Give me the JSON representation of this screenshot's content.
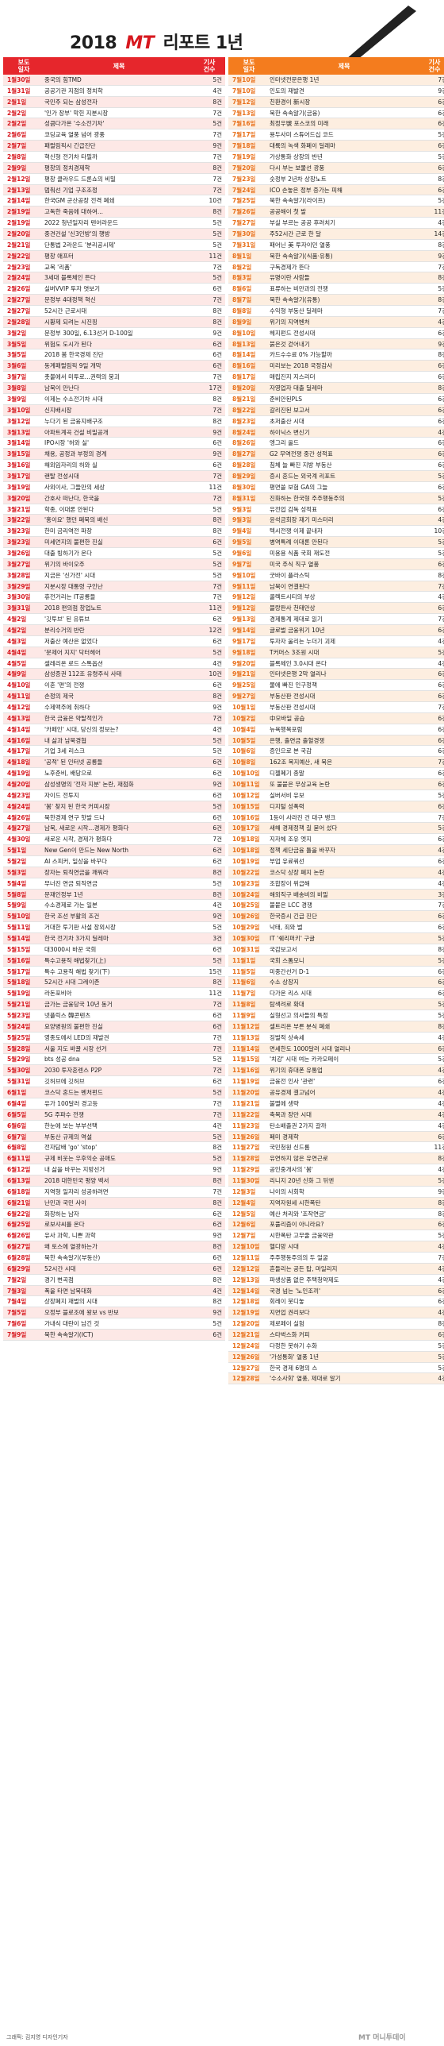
{
  "title": {
    "year": "2018",
    "brand": "MT",
    "suffix": "리포트 1년"
  },
  "headers": {
    "date": "보도\n일자",
    "subject": "제목",
    "count": "기사\n건수"
  },
  "left_rows": [
    [
      "1월30일",
      "중국의 힘TMD",
      "5건"
    ],
    [
      "1월31일",
      "공공기관 지점의 정치학",
      "4건"
    ],
    [
      "2월1일",
      "국민주 되는 삼성전자",
      "8건"
    ],
    [
      "2월2일",
      "'인가 장부' 막힌 지분시장",
      "7건"
    ],
    [
      "2월2일",
      "성큼다가온 '수소전기차'",
      "5건"
    ],
    [
      "2월6일",
      "코딩교육 열풍 넘어 광풍",
      "7건"
    ],
    [
      "2월7일",
      "패럴림픽시 긴급진단",
      "9건"
    ],
    [
      "2월8일",
      "혁신형 전기차 타필까",
      "7건"
    ],
    [
      "2월9일",
      "평창의 정치경제학",
      "8건"
    ],
    [
      "2월12일",
      "평창 클라우드 드론쇼의 비밀",
      "7건"
    ],
    [
      "2월13일",
      "멈춰선 기업 구조조정",
      "7건"
    ],
    [
      "2월14일",
      "한국GM 군산공장 전격 폐쇄",
      "10건"
    ],
    [
      "2월19일",
      "고독한 죽음에 대하여...",
      "8건"
    ],
    [
      "2월19일",
      "2022 청년일자리 텐어라운드",
      "5건"
    ],
    [
      "2월20일",
      "중견건설 '신3인방'의 행방",
      "5건"
    ],
    [
      "2월21일",
      "단통법 2라운드 '분리공시제'",
      "5건"
    ],
    [
      "2월22일",
      "평창 애프터",
      "11건"
    ],
    [
      "2월23일",
      "교복 '리폼'",
      "7건"
    ],
    [
      "2월24일",
      "3세대 블록체인 뜬다",
      "5건"
    ],
    [
      "2월26일",
      "실버VVIP 투자 엿보기",
      "6건"
    ],
    [
      "2월27일",
      "문정부 4대정책 혁신",
      "7건"
    ],
    [
      "2월27일",
      "52시간 근로시대",
      "8건"
    ],
    [
      "2월28일",
      "시황제 되려는 시진핑",
      "8건"
    ],
    [
      "3월2일",
      "문정부 300일, 6.13선거 D-100일",
      "9건"
    ],
    [
      "3월5일",
      "위험도 도시가 된다",
      "6건"
    ],
    [
      "3월5일",
      "2018 봄 한국경제 진단",
      "6건"
    ],
    [
      "3월6일",
      "동계패럴림픽 9일 개막",
      "6건"
    ],
    [
      "3월7일",
      "촛불에서 미투로...권력의 붕괴",
      "7건"
    ],
    [
      "3월8일",
      "남북이 만난다",
      "17건"
    ],
    [
      "3월9일",
      "이제는 수소전기차 시대",
      "8건"
    ],
    [
      "3월10일",
      "신지배시장",
      "7건"
    ],
    [
      "3월12일",
      "누다기 된 금융지배구조",
      "8건"
    ],
    [
      "3월13일",
      "아파트계곡 건설 비밀공개",
      "9건"
    ],
    [
      "3월14일",
      "IPO시장 '허와 실'",
      "6건"
    ],
    [
      "3월15일",
      "채용, 공정과 부정의 경계",
      "9건"
    ],
    [
      "3월16일",
      "해외임자리의 허와 실",
      "6건"
    ],
    [
      "3월17일",
      "랜탈 전성시대",
      "7건"
    ],
    [
      "3월19일",
      "사외이사, 그들만의 세상",
      "11건"
    ],
    [
      "3월20일",
      "간호사 떠난다, 한국을",
      "7건"
    ],
    [
      "3월21일",
      "학종, 이대론 안된다",
      "5건"
    ],
    [
      "3월22일",
      "'홍이요' 했던 폐북의 배신",
      "8건"
    ],
    [
      "3월23일",
      "한미 금리역전 파장",
      "8건"
    ],
    [
      "3월23일",
      "미세먼지의 불편한 진실",
      "6건"
    ],
    [
      "3월26일",
      "대출 빙하기가 온다",
      "5건"
    ],
    [
      "3월27일",
      "위기의 바이오주",
      "5건"
    ],
    [
      "3월28일",
      "지금은 '신가전' 시대",
      "5건"
    ],
    [
      "3월29일",
      "지분시장 대통령 구인난",
      "7건"
    ],
    [
      "3월30일",
      "휴전거리는 IT공룡들",
      "7건"
    ],
    [
      "3월31일",
      "2018 편의점 창업노트",
      "11건"
    ],
    [
      "4월2일",
      "'깃투브' 된 유튜브",
      "6건"
    ],
    [
      "4월2일",
      "분리수거의 반란",
      "12건"
    ],
    [
      "4월3일",
      "저출산 예산은 없었다",
      "6건"
    ],
    [
      "4월4일",
      "'문제어 지지' 닥터헤어",
      "5건"
    ],
    [
      "4월5일",
      "셀레리온 로드 스톡옵션",
      "4건"
    ],
    [
      "4월9일",
      "삼성증권 112조 유령주식 사태",
      "10건"
    ],
    [
      "4월10일",
      "이혼 '편'의 전쟁",
      "6건"
    ],
    [
      "4월11일",
      "손정의 제국",
      "8건"
    ],
    [
      "4월12일",
      "수제맥주에 취하다",
      "9건"
    ],
    [
      "4월13일",
      "한국 금융은 약탈적인가",
      "7건"
    ],
    [
      "4월14일",
      "'카페인' 시대, 당신의 정보는?",
      "4건"
    ],
    [
      "4월16일",
      "내 삶과 남북경협",
      "5건"
    ],
    [
      "4월17일",
      "기업 3세 리스크",
      "5건"
    ],
    [
      "4월18일",
      "'공적' 된 인터넷 공룡들",
      "6건"
    ],
    [
      "4월19일",
      "노후준비, 배당으로",
      "6건"
    ],
    [
      "4월20일",
      "삼성생명의 '전자 지분' 논란, 재점화",
      "9건"
    ],
    [
      "4월23일",
      "자이드 전투지",
      "6건"
    ],
    [
      "4월24일",
      "'봄' 찾지 된 한국 커피시장",
      "5건"
    ],
    [
      "4월26일",
      "북한경제 연구 핫발 드나",
      "6건"
    ],
    [
      "4월27일",
      "남북, 새로운 시작...경제가 평화다",
      "6건"
    ],
    [
      "4월30일",
      "새로운 시작, 경제가 평화다",
      "7건"
    ],
    [
      "5월1일",
      "New Gen이 만드는 New North",
      "6건"
    ],
    [
      "5월2일",
      "AI 스피커, 일상을 바꾸다",
      "6건"
    ],
    [
      "5월3일",
      "장자는 퇴직연금을 깨워라",
      "8건"
    ],
    [
      "5월4일",
      "무너진 연금 퇴직연금",
      "5건"
    ],
    [
      "5월8일",
      "문재인정부 1년",
      "8건"
    ],
    [
      "5월9일",
      "수소경제로 가는 일본",
      "4건"
    ],
    [
      "5월10일",
      "한국 조선 부활의 조건",
      "9건"
    ],
    [
      "5월11일",
      "거대한 투기판 사설 장외시장",
      "5건"
    ],
    [
      "5월14일",
      "한국 전기차 3가지 딜레마",
      "3건"
    ],
    [
      "5월15일",
      "대3000시 바꾼 국회",
      "6건"
    ],
    [
      "5월16일",
      "특수고용직 해법찾기(上)",
      "5건"
    ],
    [
      "5월17일",
      "특수 고용직 해법 찾기(下)",
      "15건"
    ],
    [
      "5월18일",
      "52시간 시대 그레이존",
      "8건"
    ],
    [
      "5월19일",
      "라돈포비아",
      "11건"
    ],
    [
      "5월21일",
      "금가는 금융당국 10년 동거",
      "7건"
    ],
    [
      "5월23일",
      "넷플릭스 韓콘텐츠",
      "6건"
    ],
    [
      "5월24일",
      "요양병원의 불편한 진실",
      "6건"
    ],
    [
      "5월25일",
      "영종도에서 LED의 재발견",
      "7건"
    ],
    [
      "5월28일",
      "서울 지도 바꿀 시장 선거",
      "7건"
    ],
    [
      "5월29일",
      "bts 성공 dna",
      "5건"
    ],
    [
      "5월30일",
      "2030 투자혼렌스 P2P",
      "7건"
    ],
    [
      "5월31일",
      "깃허브에 깃허브",
      "6건"
    ],
    [
      "6월1일",
      "코스닥 혼드는 벤처펀드",
      "5건"
    ],
    [
      "6월4일",
      "유가 100달러 경고등",
      "7건"
    ],
    [
      "6월5일",
      "5G 주파수 전쟁",
      "7건"
    ],
    [
      "6월6일",
      "한눈에 보는 부부선택",
      "4건"
    ],
    [
      "6월7일",
      "부동산 규제의 역설",
      "5건"
    ],
    [
      "6월8일",
      "전자담배 'go' 'stop'",
      "8건"
    ],
    [
      "6월11일",
      "규제 비웃는 우후익순 공매도",
      "5건"
    ],
    [
      "6월12일",
      "내 삶을 바꾸는 지방선거",
      "9건"
    ],
    [
      "6월13일",
      "2018 대한민국 평양 백서",
      "8건"
    ],
    [
      "6월18일",
      "지역형 일자리 성공하려면",
      "7건"
    ],
    [
      "6월21일",
      "난민과 국민 사이",
      "8건"
    ],
    [
      "6월22일",
      "화장하는 남자",
      "6건"
    ],
    [
      "6월25일",
      "로보샤씨를 온다",
      "6건"
    ],
    [
      "6월26일",
      "유사 과학, 니쁜 과학",
      "9건"
    ],
    [
      "6월27일",
      "왜 토스에 열광하는가",
      "8건"
    ],
    [
      "6월28일",
      "북한 속속알기(부동산)",
      "6건"
    ],
    [
      "6월29일",
      "52시간 시대",
      "6건"
    ],
    [
      "7월2일",
      "경기 변곡점",
      "8건"
    ],
    [
      "7월3일",
      "폭을 타면 남북대화",
      "4건"
    ],
    [
      "7월4일",
      "상장폐지 재벌의 시대",
      "8건"
    ],
    [
      "7월5일",
      "오정부 블로조에 왕보 vs 반보",
      "9건"
    ],
    [
      "7월6일",
      "가내식 대란이 남긴 것",
      "5건"
    ],
    [
      "7월9일",
      "북한 속속알기(ICT)",
      "6건"
    ]
  ],
  "right_rows": [
    [
      "7월10일",
      "인터넷전문은행 1년",
      "7건"
    ],
    [
      "7월10일",
      "인도의 재발견",
      "9건"
    ],
    [
      "7월12일",
      "친환경이 新시장",
      "6건"
    ],
    [
      "7월13일",
      "북한 속속알기(금융)",
      "6건"
    ],
    [
      "7월16일",
      "최정우號 포스코의 미래",
      "6건"
    ],
    [
      "7월17일",
      "용두사미 스튜어드십 코드",
      "5건"
    ],
    [
      "7월18일",
      "대륙의 녹색 화폐이 딜레마",
      "6건"
    ],
    [
      "7월19일",
      "가상통화 상장의 반년",
      "5건"
    ],
    [
      "7월20일",
      "다시 부는 보물선 광풍",
      "6건"
    ],
    [
      "7월23일",
      "숫정부 2년차 상장노트",
      "8건"
    ],
    [
      "7월24일",
      "ICO 손놓은 정부 증가는 피해",
      "6건"
    ],
    [
      "7월25일",
      "북한 속속알기(라이프)",
      "5건"
    ],
    [
      "7월26일",
      "공공해이 첫 발",
      "11건"
    ],
    [
      "7월27일",
      "부실 부르는 공공 후려치기",
      "4건"
    ],
    [
      "7월30일",
      "주52시간 근로 한 달",
      "14건"
    ],
    [
      "7월31일",
      "패어닌 美 투자이민 열풍",
      "8건"
    ],
    [
      "8월1일",
      "북한 속속알기(식품·유통)",
      "9건"
    ],
    [
      "8월2일",
      "구독경제가 뜬다",
      "7건"
    ],
    [
      "8월3일",
      "유명이란 사람들",
      "8건"
    ],
    [
      "8월6일",
      "표류하는 비만과의 전쟁",
      "5건"
    ],
    [
      "8월7일",
      "북한 속속알기(유통)",
      "8건"
    ],
    [
      "8월8일",
      "수익형 부동산 딜레마",
      "7건"
    ],
    [
      "8월9일",
      "위기의 지역벤처",
      "4건"
    ],
    [
      "8월10일",
      "헤지펀드 전성시대",
      "6건"
    ],
    [
      "8월13일",
      "붉은것 걷어내기",
      "9건"
    ],
    [
      "8월14일",
      "카드수수료 0% 가능할까",
      "8건"
    ],
    [
      "8월16일",
      "미리보는 2018 국정감사",
      "6건"
    ],
    [
      "8월17일",
      "매립진지 지스리더",
      "6건"
    ],
    [
      "8월20일",
      "자영업자 대출 딜레마",
      "8건"
    ],
    [
      "8월21일",
      "준비안된PLS",
      "6건"
    ],
    [
      "8월22일",
      "갈리진된 보고서",
      "6건"
    ],
    [
      "8월23일",
      "초저출산 시대",
      "6건"
    ],
    [
      "8월24일",
      "하이닉스 변신기",
      "4건"
    ],
    [
      "8월26일",
      "엥그리 올드",
      "6건"
    ],
    [
      "8월27일",
      "G2 무역전쟁 중간 성적표",
      "6건"
    ],
    [
      "8월28일",
      "침체 늘 빠진 지방 부동산",
      "6건"
    ],
    [
      "8월29일",
      "증시 혼드는 외국계 리포트",
      "5건"
    ],
    [
      "8월30일",
      "평면쓸 보험 GA의 그늘",
      "6건"
    ],
    [
      "8월31일",
      "진화하는 한국형 주주행동주의",
      "5건"
    ],
    [
      "9월3일",
      "유전업 감독 성적표",
      "6건"
    ],
    [
      "9월3일",
      "윤석금회장 재기 미스터리",
      "4건"
    ],
    [
      "9월4일",
      "텍시전쟁 이제 끝내자",
      "10건"
    ],
    [
      "9월5일",
      "병역특례 이대론 안된다",
      "5건"
    ],
    [
      "9월6일",
      "미용용 식품 국회 재도전",
      "5건"
    ],
    [
      "9월7일",
      "미국 주식 직구 열풍",
      "6건"
    ],
    [
      "9월10일",
      "굿바이 플라스틱",
      "8건"
    ],
    [
      "9월11일",
      "남북이 연결된다",
      "7건"
    ],
    [
      "9월12일",
      "콜렉트시티의 부상",
      "4건"
    ],
    [
      "9월12일",
      "블랑판사 천태만상",
      "6건"
    ],
    [
      "9월13일",
      "경제통계 제대로 읽기",
      "7건"
    ],
    [
      "9월14일",
      "글로벌 금융위기 10년",
      "6건"
    ],
    [
      "9월17일",
      "투자자 울리는 누더기 괴제",
      "4건"
    ],
    [
      "9월18일",
      "T커머스 3조원 시대",
      "5건"
    ],
    [
      "9월20일",
      "블록체인 3.0시대 온다",
      "4건"
    ],
    [
      "9월21일",
      "인터넷은행 2막 열리나",
      "6건"
    ],
    [
      "9월25일",
      "물에 빠진 인구정책",
      "6건"
    ],
    [
      "9월27일",
      "부동산판 전성시대",
      "6건"
    ],
    [
      "10월1일",
      "부동산판 전성시대",
      "7건"
    ],
    [
      "10월2일",
      "中모바일 공습",
      "6건"
    ],
    [
      "10월4일",
      "뉴욕행복포럼",
      "6건"
    ],
    [
      "10월5일",
      "은행, 출연금 출혈경쟁",
      "6건"
    ],
    [
      "10월6일",
      "증인으로 본 국감",
      "6건"
    ],
    [
      "10월8일",
      "162조 복지예산, 새 묵은",
      "7건"
    ],
    [
      "10월10일",
      "디젤폐기 종말",
      "6건"
    ],
    [
      "10월11일",
      "또 불붙은 무상교육 논란",
      "6건"
    ],
    [
      "10월12일",
      "실버서비 유보",
      "5건"
    ],
    [
      "10월15일",
      "디지털 성폭력",
      "6건"
    ],
    [
      "10월16일",
      "1등이 사라진 건 대구 뱅크",
      "7건"
    ],
    [
      "10월17일",
      "새해 경제정책 길 묻어 섰다",
      "5건"
    ],
    [
      "10월18일",
      "지자체 조유 엣지",
      "6건"
    ],
    [
      "10월18일",
      "정책 세단금융 틀을 바꾸자",
      "4건"
    ],
    [
      "10월19일",
      "부업 유료쿼선",
      "6건"
    ],
    [
      "10월22일",
      "코스닥 상장 폐지 논란",
      "4건"
    ],
    [
      "10월23일",
      "조합장이 위급해",
      "4건"
    ],
    [
      "10월24일",
      "해외직구 배송비의 비밀",
      "3건"
    ],
    [
      "10월25일",
      "불붙은 LCC 경쟁",
      "7건"
    ],
    [
      "10월26일",
      "한국증시 긴급 진단",
      "6건"
    ],
    [
      "10월29일",
      "낙태, 죄와 벌",
      "6건"
    ],
    [
      "10월30일",
      "IT '쉐리퍼키' 구글",
      "5건"
    ],
    [
      "10월31일",
      "국감보고서",
      "8건"
    ],
    [
      "11월1일",
      "국회 스톰모니",
      "5건"
    ],
    [
      "11월5일",
      "미중간선거 D-1",
      "6건"
    ],
    [
      "11월6일",
      "수소 상장지",
      "6건"
    ],
    [
      "11월7일",
      "다가온 리스 시대",
      "6건"
    ],
    [
      "11월8일",
      "탐색려로 확대",
      "5건"
    ],
    [
      "11월9일",
      "실형선고 의사들의 특정",
      "5건"
    ],
    [
      "11월12일",
      "셀트리온 부른 분식 폐쇄",
      "8건"
    ],
    [
      "11월13일",
      "징벌적 상속세",
      "4건"
    ],
    [
      "11월14일",
      "면세한도 1000달러 시대 열리나",
      "6건"
    ],
    [
      "11월15일",
      "'치강' 시대 여는 카카오페이",
      "5건"
    ],
    [
      "11월16일",
      "위기의 휴대폰 유통업",
      "4건"
    ],
    [
      "11월19일",
      "금융전 인사 '관련'",
      "6건"
    ],
    [
      "11월20일",
      "공유경제 결고넘어",
      "4건"
    ],
    [
      "11월21일",
      "불멸에 생략",
      "4건"
    ],
    [
      "11월22일",
      "축복과 장만 시대",
      "4건"
    ],
    [
      "11월23일",
      "탄소배출권 2가지 갈까",
      "4건"
    ],
    [
      "11월26일",
      "폐미 경제학",
      "6건"
    ],
    [
      "11월27일",
      "국민청원 신드롬",
      "11건"
    ],
    [
      "11월28일",
      "유연하지 않은 유연근로",
      "8건"
    ],
    [
      "11월29일",
      "공인중개사의 '봄'",
      "4건"
    ],
    [
      "11월30일",
      "리니지 20년 신화 그 뒤엔",
      "5건"
    ],
    [
      "12월3일",
      "나이의 사회학",
      "9건"
    ],
    [
      "12월4일",
      "지역자원세 시한폭탄",
      "8건"
    ],
    [
      "12월5일",
      "예산 처리와 '조작연금'",
      "8건"
    ],
    [
      "12월6일",
      "포퓰리즘이 아니라요?",
      "6건"
    ],
    [
      "12월7일",
      "시한폭탄 고무줄 금융약관",
      "5건"
    ],
    [
      "12월10일",
      "헬디망 시대",
      "4건"
    ],
    [
      "12월11일",
      "주주행동주의의 두 얼굴",
      "7건"
    ],
    [
      "12월12일",
      "흔들리는 공든 탑, 마일리지",
      "4건"
    ],
    [
      "12월13일",
      "파생상품 없은 주택청약제도",
      "4건"
    ],
    [
      "12월14일",
      "국경 넘는 '노인조끼'",
      "6건"
    ],
    [
      "12월18일",
      "회레이 붓디놓",
      "6건"
    ],
    [
      "12월19일",
      "지면업 권리보다",
      "4건"
    ],
    [
      "12월20일",
      "제로페이 실험",
      "8건"
    ],
    [
      "12월21일",
      "스타벅스화 커피",
      "6건"
    ],
    [
      "12월24일",
      "다정한 봇하기 수화",
      "5건"
    ],
    [
      "12월26일",
      "'가성통화' 열풍 1년",
      "5건"
    ],
    [
      "12월27일",
      "한국 경제 6명의 스",
      "5건"
    ],
    [
      "12월28일",
      "'수소사회' 열풍, 제대로 알기",
      "4건"
    ]
  ],
  "footer": {
    "credit": "그래픽: 김지영 디자인기자",
    "logo": "MT 머니투데이"
  }
}
